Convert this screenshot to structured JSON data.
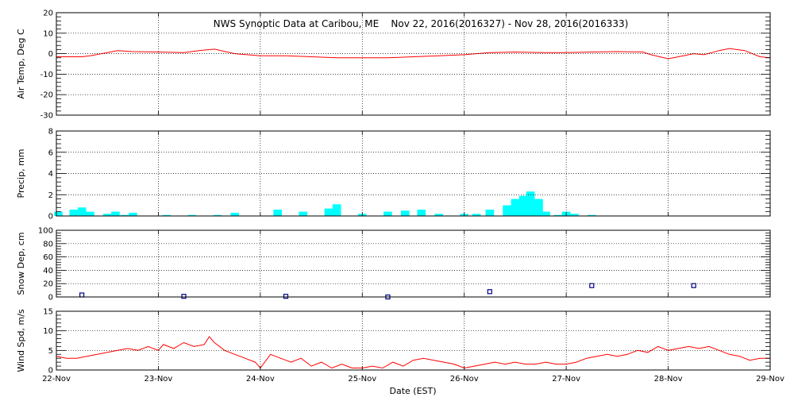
{
  "chart_data": {
    "title": "NWS Synoptic Data at Caribou, ME    Nov 22, 2016(2016327) - Nov 28, 2016(2016333)",
    "xlabel": "Date (EST)",
    "x_ticks": [
      "22-Nov",
      "23-Nov",
      "24-Nov",
      "25-Nov",
      "26-Nov",
      "27-Nov",
      "28-Nov",
      "29-Nov"
    ],
    "x_range_days": [
      0,
      7
    ],
    "grid": "dotted, each x tick and each labeled y tick",
    "colors": {
      "line": "#ff0000",
      "bar": "#00ffff",
      "marker": "#00008b",
      "axes": "#000000",
      "grid": "#000000"
    },
    "panels": [
      {
        "id": "air-temp",
        "type": "line",
        "ylabel": "Air Temp, Deg C",
        "ylim": [
          -30,
          20
        ],
        "y_ticks": [
          -30,
          -20,
          -10,
          0,
          10,
          20
        ],
        "series": [
          {
            "x": [
              0,
              0.25,
              0.33,
              0.5,
              0.6,
              0.75,
              1.0,
              1.25,
              1.4,
              1.55,
              1.75,
              2.0,
              2.25,
              2.5,
              2.75,
              3.0,
              3.25,
              3.5,
              3.75,
              4.0,
              4.25,
              4.5,
              4.75,
              5.0,
              5.25,
              5.5,
              5.75,
              5.83,
              6.0,
              6.1,
              6.25,
              6.35,
              6.5,
              6.6,
              6.75,
              6.9,
              7.0
            ],
            "y": [
              -1.5,
              -1.5,
              -1,
              0.5,
              1.5,
              1,
              0.8,
              0.5,
              1.5,
              2.2,
              0,
              -1,
              -1,
              -1.5,
              -2,
              -2,
              -2,
              -1.5,
              -1,
              -0.5,
              0.5,
              0.8,
              0.5,
              0.5,
              0.8,
              1,
              0.8,
              -0.5,
              -2.5,
              -1.5,
              0,
              -0.5,
              1.5,
              2.5,
              1.5,
              -1.5,
              -2
            ]
          }
        ]
      },
      {
        "id": "precip",
        "type": "bar",
        "ylabel": "Precip, mm",
        "ylim": [
          0,
          8
        ],
        "y_ticks": [
          0,
          2,
          4,
          6,
          8
        ],
        "series": [
          {
            "x": [
              0.02,
              0.17,
              0.25,
              0.33,
              0.5,
              0.58,
              0.67,
              0.75,
              1.08,
              1.33,
              1.58,
              1.75,
              2.17,
              2.42,
              2.67,
              2.75,
              3.0,
              3.25,
              3.42,
              3.58,
              3.75,
              4.0,
              4.12,
              4.25,
              4.42,
              4.5,
              4.58,
              4.65,
              4.73,
              4.8,
              4.92,
              5.0,
              5.08,
              5.25
            ],
            "values": [
              0.4,
              0.6,
              0.8,
              0.4,
              0.2,
              0.4,
              0.1,
              0.3,
              0.1,
              0.1,
              0.1,
              0.3,
              0.6,
              0.4,
              0.7,
              1.1,
              0.2,
              0.4,
              0.5,
              0.6,
              0.2,
              0.2,
              0.2,
              0.6,
              1.0,
              1.6,
              1.9,
              2.3,
              1.6,
              0.4,
              0.1,
              0.4,
              0.2,
              0.1
            ]
          }
        ]
      },
      {
        "id": "snow-depth",
        "type": "scatter",
        "ylabel": "Snow Dep, cm",
        "ylim": [
          0,
          100
        ],
        "y_ticks": [
          0,
          20,
          40,
          60,
          80,
          100
        ],
        "series": [
          {
            "x": [
              0.25,
              1.25,
              2.25,
              3.25,
              4.25,
              5.25,
              6.25
            ],
            "y": [
              3,
              1,
              1,
              0,
              8,
              17,
              17
            ]
          }
        ]
      },
      {
        "id": "wind-speed",
        "type": "line",
        "ylabel": "Wind Spd, m/s",
        "ylim": [
          0,
          15
        ],
        "y_ticks": [
          0,
          5,
          10,
          15
        ],
        "series": [
          {
            "x": [
              0,
              0.1,
              0.2,
              0.3,
              0.4,
              0.5,
              0.6,
              0.7,
              0.8,
              0.9,
              1.0,
              1.05,
              1.15,
              1.25,
              1.35,
              1.45,
              1.5,
              1.55,
              1.65,
              1.75,
              1.85,
              1.95,
              2.0,
              2.1,
              2.2,
              2.3,
              2.4,
              2.5,
              2.6,
              2.7,
              2.8,
              2.9,
              3.0,
              3.1,
              3.2,
              3.3,
              3.4,
              3.5,
              3.6,
              3.7,
              3.8,
              3.9,
              4.0,
              4.1,
              4.2,
              4.3,
              4.4,
              4.5,
              4.6,
              4.7,
              4.8,
              4.9,
              5.0,
              5.1,
              5.2,
              5.3,
              5.4,
              5.5,
              5.6,
              5.7,
              5.8,
              5.9,
              6.0,
              6.1,
              6.2,
              6.3,
              6.4,
              6.5,
              6.6,
              6.7,
              6.8,
              6.9,
              7.0
            ],
            "y": [
              3.5,
              3,
              3,
              3.5,
              4,
              4.5,
              5,
              5.5,
              5,
              6,
              5,
              6.5,
              5.5,
              7,
              6,
              6.5,
              8.5,
              7,
              5,
              4,
              3,
              2,
              0.5,
              4,
              3,
              2,
              3,
              1,
              2,
              0.5,
              1.5,
              0.5,
              0.5,
              1,
              0.5,
              2,
              1,
              2.5,
              3,
              2.5,
              2,
              1.5,
              0.5,
              1,
              1.5,
              2,
              1.5,
              2,
              1.5,
              1.5,
              2,
              1.5,
              1.5,
              2,
              3,
              3.5,
              4,
              3.5,
              4,
              5,
              4.5,
              6,
              5,
              5.5,
              6,
              5.5,
              6,
              5,
              4,
              3.5,
              2.5,
              3,
              3
            ]
          }
        ]
      }
    ]
  }
}
